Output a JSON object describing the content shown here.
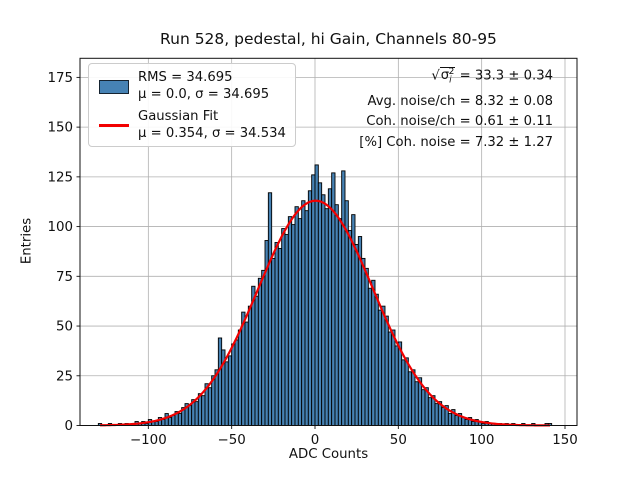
{
  "figure": {
    "title": "Run 528, pedestal, hi Gain, Channels 80-95",
    "xlabel": "ADC Counts",
    "ylabel": "Entries"
  },
  "legend": {
    "entries": [
      {
        "handle": "histogram-swatch",
        "color": "#4682b4",
        "lines": [
          "RMS = 34.695",
          "μ = 0.0, σ = 34.695"
        ]
      },
      {
        "handle": "fit-line-sample",
        "color": "#f20000",
        "lines": [
          "Gaussian Fit",
          "μ = 0.354, σ = 34.534"
        ]
      }
    ]
  },
  "stats": {
    "sigma_line": {
      "radical": "√",
      "sigma": "σ",
      "subscript": "i",
      "superscript": "2",
      "value": " = 33.3 ± 0.34"
    },
    "avg_noise": "Avg. noise/ch = 8.32 ± 0.08",
    "coh_noise": "Coh. noise/ch = 0.61 ± 0.11",
    "pct_coh_noise": "[%] Coh. noise = 7.32 ± 1.27"
  },
  "chart_data": {
    "type": "bar",
    "subtype": "histogram",
    "title": "Run 528, pedestal, hi Gain, Channels 80-95",
    "xlabel": "ADC Counts",
    "ylabel": "Entries",
    "xlim": [
      -141,
      157.2
    ],
    "ylim": [
      0,
      184.6
    ],
    "xticks": [
      -100,
      -50,
      0,
      50,
      100,
      150
    ],
    "yticks": [
      0,
      25,
      50,
      75,
      100,
      125,
      150,
      175
    ],
    "grid": true,
    "grid_color": "#b0b0b0",
    "bar_color": "#4682b4",
    "bar_edge_color": "#000000",
    "bins": {
      "start": -130,
      "width": 2,
      "counts": [
        1,
        0,
        0,
        1,
        0,
        0,
        1,
        0,
        1,
        0,
        1,
        2,
        1,
        2,
        1,
        3,
        2,
        2,
        4,
        3,
        6,
        4,
        5,
        7,
        6,
        9,
        11,
        10,
        13,
        12,
        16,
        15,
        21,
        19,
        25,
        28,
        44,
        38,
        32,
        35,
        41,
        43,
        48,
        57,
        52,
        60,
        70,
        65,
        74,
        78,
        93,
        117,
        84,
        92,
        89,
        99,
        96,
        105,
        101,
        110,
        104,
        113,
        108,
        118,
        126,
        131,
        122,
        116,
        109,
        119,
        127,
        111,
        104,
        128,
        113,
        98,
        106,
        91,
        95,
        84,
        79,
        69,
        73,
        66,
        58,
        60,
        55,
        47,
        48,
        40,
        42,
        33,
        34,
        27,
        28,
        22,
        24,
        18,
        19,
        14,
        15,
        11,
        12,
        9,
        10,
        6,
        8,
        5,
        6,
        4,
        3,
        4,
        2,
        3,
        2,
        1,
        2,
        1,
        1,
        0,
        1,
        0,
        1,
        0,
        1,
        0,
        0,
        1,
        0,
        0,
        1,
        0,
        0,
        0,
        1,
        1
      ]
    },
    "fit": {
      "type": "gaussian",
      "amplitude": 113,
      "mu": 0.354,
      "sigma": 34.534,
      "x_start": -129,
      "x_end": 141,
      "color": "#f20000",
      "line_width": 2.2
    },
    "histogram_stats": {
      "rms": 34.695,
      "mu": 0.0,
      "sigma": 34.695
    },
    "fit_stats": {
      "mu": 0.354,
      "sigma": 34.534
    },
    "annotations": {
      "sqrt_mean_sigma_sq": "33.3 ± 0.34",
      "avg_noise_per_ch": "8.32 ± 0.08",
      "coh_noise_per_ch": "0.61 ± 0.11",
      "pct_coh_noise": "7.32 ± 1.27"
    },
    "legend_position": "upper left"
  }
}
